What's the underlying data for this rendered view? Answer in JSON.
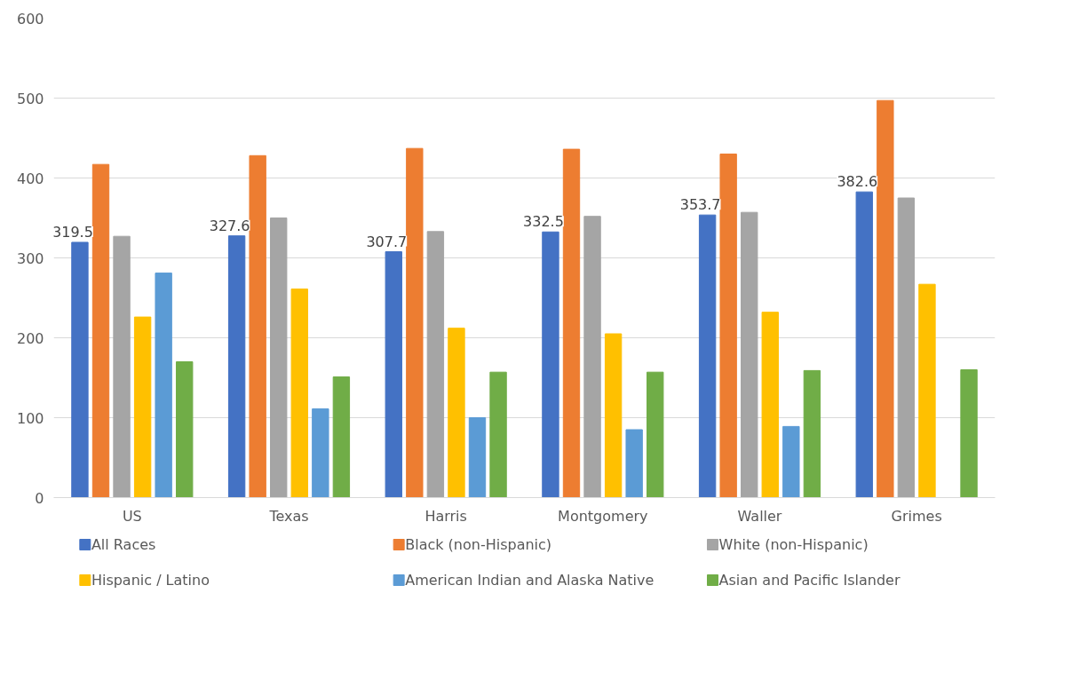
{
  "chart_data": {
    "type": "bar",
    "categories": [
      "US",
      "Texas",
      "Harris",
      "Montgomery",
      "Waller",
      "Grimes"
    ],
    "ylim": [
      0,
      600
    ],
    "yticks": [
      0,
      100,
      200,
      300,
      400,
      500,
      600
    ],
    "grid": "y",
    "legend": "bottom",
    "series": [
      {
        "name": "All Races",
        "color": "#4472c4",
        "values": [
          319.5,
          327.6,
          307.7,
          332.5,
          353.7,
          382.6
        ],
        "value_labels": [
          "319.5",
          "327.6",
          "307.7",
          "332.5",
          "353.7",
          "382.6"
        ]
      },
      {
        "name": "Black (non-Hispanic)",
        "color": "#ed7d31",
        "values": [
          417,
          428,
          437,
          436,
          430,
          497
        ]
      },
      {
        "name": "White (non-Hispanic)",
        "color": "#a5a5a5",
        "values": [
          327,
          350,
          333,
          352,
          357,
          375
        ]
      },
      {
        "name": "Hispanic / Latino",
        "color": "#ffc000",
        "values": [
          226,
          261,
          212,
          205,
          232,
          267
        ]
      },
      {
        "name": "American Indian and Alaska Native",
        "color": "#5b9bd5",
        "values": [
          281,
          111,
          100,
          85,
          89,
          null
        ]
      },
      {
        "name": "Asian and Pacific Islander",
        "color": "#70ad47",
        "values": [
          170,
          151,
          157,
          157,
          159,
          160
        ]
      }
    ]
  }
}
